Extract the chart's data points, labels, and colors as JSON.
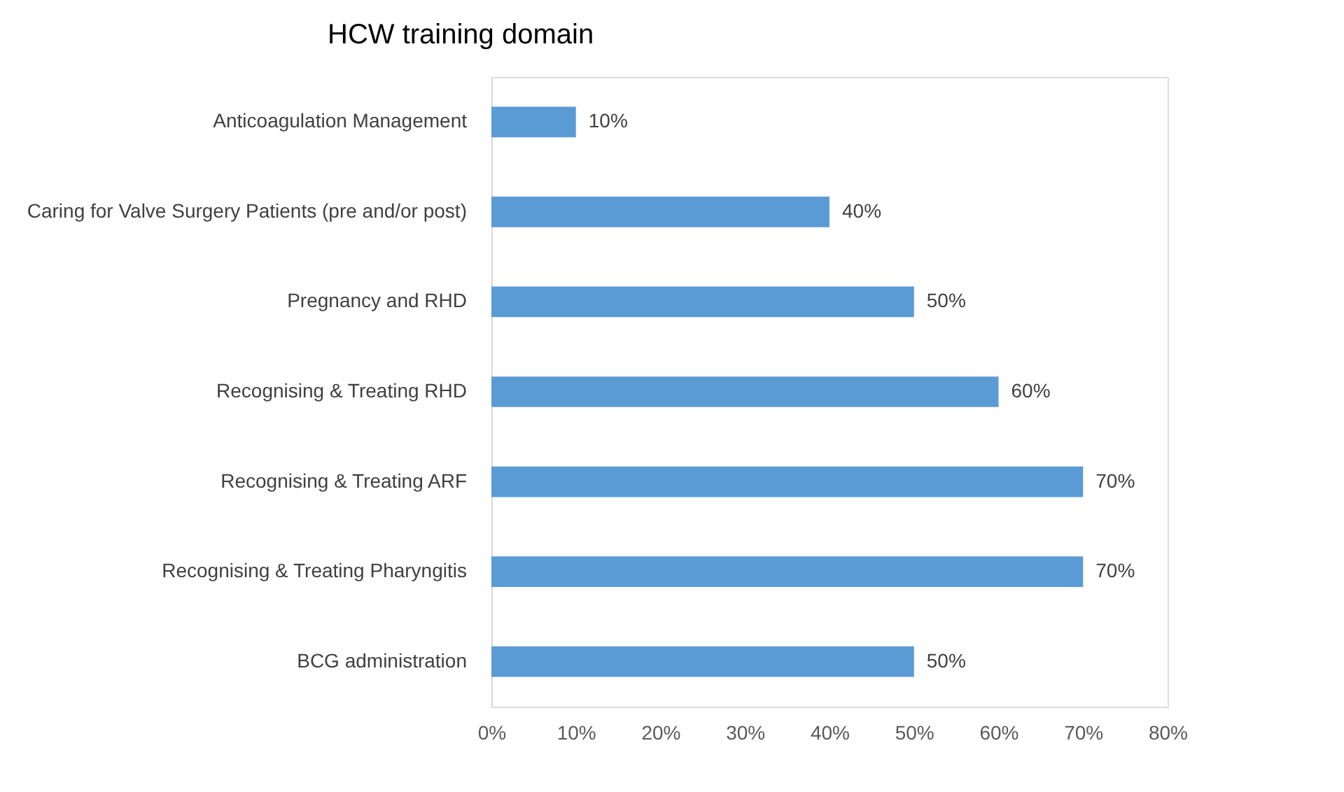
{
  "chart_data": {
    "type": "bar",
    "orientation": "horizontal",
    "title": "HCW training domain",
    "categories": [
      "Anticoagulation Management",
      "Caring for Valve Surgery Patients (pre and/or post)",
      "Pregnancy and RHD",
      "Recognising & Treating RHD",
      "Recognising & Treating ARF",
      "Recognising & Treating Pharyngitis",
      "BCG administration"
    ],
    "values": [
      10,
      40,
      50,
      60,
      70,
      70,
      50
    ],
    "value_labels": [
      "10%",
      "40%",
      "50%",
      "60%",
      "70%",
      "70%",
      "50%"
    ],
    "color": "#5b9bd5",
    "xlim": [
      0,
      80
    ],
    "xticks": [
      {
        "value": 0,
        "label": "0%"
      },
      {
        "value": 10,
        "label": "10%"
      },
      {
        "value": 20,
        "label": "20%"
      },
      {
        "value": 30,
        "label": "30%"
      },
      {
        "value": 40,
        "label": "40%"
      },
      {
        "value": 50,
        "label": "50%"
      },
      {
        "value": 60,
        "label": "60%"
      },
      {
        "value": 70,
        "label": "70%"
      },
      {
        "value": 80,
        "label": "80%"
      }
    ],
    "grid": false
  }
}
